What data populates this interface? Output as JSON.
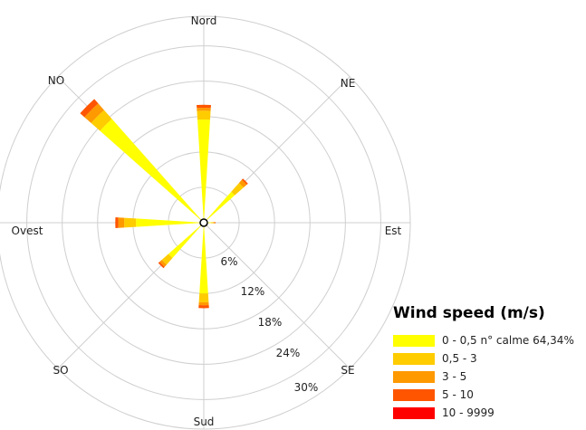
{
  "chart_data": {
    "type": "wind-rose",
    "title": "",
    "directions": [
      {
        "angle": 0,
        "label": "Nord"
      },
      {
        "angle": 45,
        "label": "NE"
      },
      {
        "angle": 90,
        "label": "Est"
      },
      {
        "angle": 135,
        "label": "SE"
      },
      {
        "angle": 180,
        "label": "Sud"
      },
      {
        "angle": 225,
        "label": "SO"
      },
      {
        "angle": 270,
        "label": "Ovest"
      },
      {
        "angle": 315,
        "label": "NO"
      }
    ],
    "rings": [
      {
        "value": 6,
        "label": "6%"
      },
      {
        "value": 12,
        "label": "12%"
      },
      {
        "value": 18,
        "label": "18%"
      },
      {
        "value": 24,
        "label": "24%"
      },
      {
        "value": 30,
        "label": "30%"
      }
    ],
    "rmax": 35,
    "legend_title": "Wind speed (m/s)",
    "bins": [
      {
        "label": "0 - 0,5 n° calme 64,34%",
        "color": "#ffff00"
      },
      {
        "label": "0,5 - 3",
        "color": "#ffcc00"
      },
      {
        "label": "3 - 5",
        "color": "#ff9900"
      },
      {
        "label": "5 - 10",
        "color": "#ff5500"
      },
      {
        "label": "10 - 9999",
        "color": "#ff0000"
      }
    ],
    "series": [
      {
        "direction": "Nord",
        "angle": 0,
        "cumulative": [
          0,
          17.5,
          19.0,
          19.5,
          20.0,
          20.0
        ]
      },
      {
        "direction": "NE",
        "angle": 45,
        "cumulative": [
          0,
          7.0,
          9.0,
          9.7,
          10.0,
          10.0
        ]
      },
      {
        "direction": "Est",
        "angle": 90,
        "cumulative": [
          0,
          1.2,
          1.6,
          1.9,
          2.0,
          2.0
        ]
      },
      {
        "direction": "SE",
        "angle": 135,
        "cumulative": [
          0,
          0.5,
          0.7,
          0.8,
          0.8,
          0.8
        ]
      },
      {
        "direction": "Sud",
        "angle": 180,
        "cumulative": [
          0,
          12.0,
          13.5,
          14.0,
          14.5,
          14.5
        ]
      },
      {
        "direction": "SO",
        "angle": 225,
        "cumulative": [
          0,
          8.0,
          9.5,
          10.0,
          10.3,
          10.3
        ]
      },
      {
        "direction": "Ovest",
        "angle": 270,
        "cumulative": [
          0,
          11.5,
          13.5,
          14.5,
          15.0,
          15.0
        ]
      },
      {
        "direction": "NO",
        "angle": 315,
        "cumulative": [
          0,
          23.5,
          25.5,
          27.0,
          28.0,
          28.0
        ]
      }
    ]
  }
}
